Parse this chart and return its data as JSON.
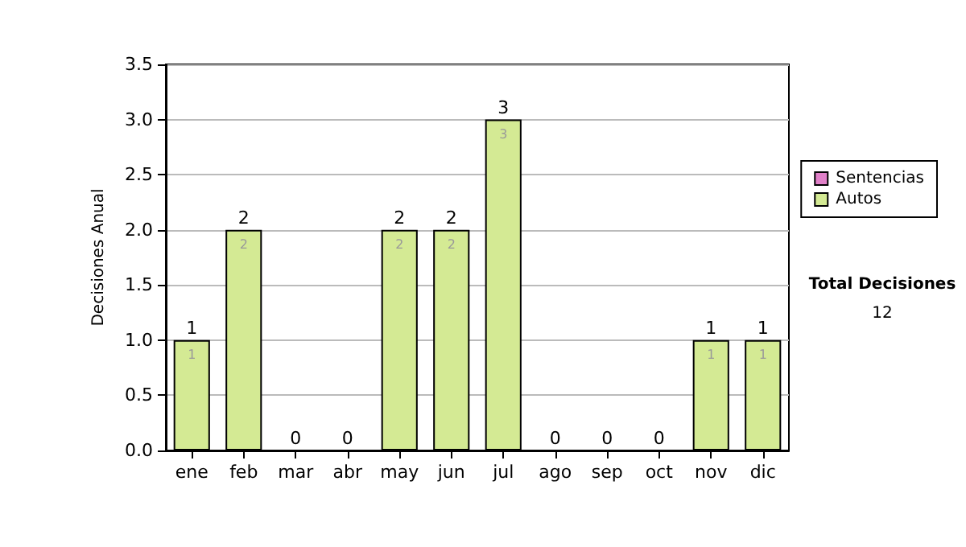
{
  "chart_data": {
    "type": "bar",
    "stacked": true,
    "ylabel": "Decisiones Anual",
    "categories": [
      "ene",
      "feb",
      "mar",
      "abr",
      "may",
      "jun",
      "jul",
      "ago",
      "sep",
      "oct",
      "nov",
      "dic"
    ],
    "series": [
      {
        "name": "Autos",
        "color": "#d4ea94",
        "values": [
          1,
          2,
          0,
          0,
          2,
          2,
          3,
          0,
          0,
          0,
          1,
          1
        ],
        "value_labels": [
          "1",
          "2",
          null,
          null,
          "2",
          "2",
          "3",
          null,
          null,
          null,
          "1",
          "1"
        ]
      },
      {
        "name": "Sentencias",
        "color": "#e080c8",
        "values": [
          0,
          0,
          0,
          0,
          0,
          0,
          0,
          0,
          0,
          0,
          0,
          0
        ]
      }
    ],
    "totals": [
      "1",
      "2",
      "0",
      "0",
      "2",
      "2",
      "3",
      "0",
      "0",
      "0",
      "1",
      "1"
    ],
    "ylim": [
      0,
      3.5
    ],
    "yticks": [
      {
        "value": 0,
        "label": "0.0"
      },
      {
        "value": 0.5,
        "label": "0.5"
      },
      {
        "value": 1,
        "label": "1.0"
      },
      {
        "value": 1.5,
        "label": "1.5"
      },
      {
        "value": 2,
        "label": "2.0"
      },
      {
        "value": 2.5,
        "label": "2.5"
      },
      {
        "value": 3,
        "label": "3.0"
      },
      {
        "value": 3.5,
        "label": "3.5"
      }
    ],
    "grid": "y",
    "legend": "right",
    "annotations": [
      "Total Decisiones",
      "12"
    ]
  }
}
